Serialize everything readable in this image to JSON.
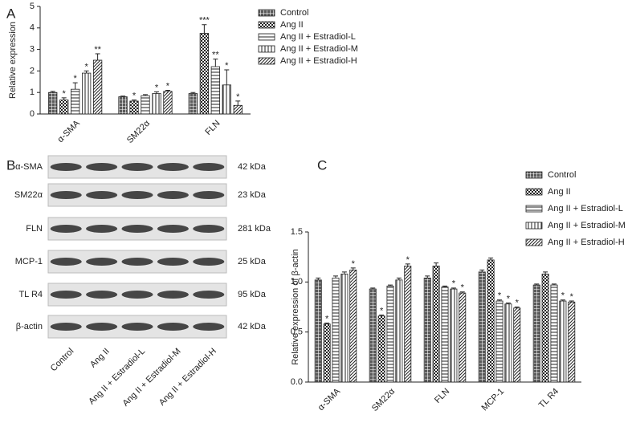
{
  "chart_data": [
    {
      "type": "bar",
      "panel": "A",
      "y_label": "Relative expression",
      "categories": [
        "α-SMA",
        "SM22α",
        "FLN"
      ],
      "ylim": [
        0,
        5
      ],
      "yticks": [
        0,
        1,
        2,
        3,
        4,
        5
      ],
      "series": [
        {
          "name": "Control",
          "color": "#222222",
          "pattern": "grid",
          "values": [
            1.0,
            0.8,
            0.95
          ],
          "errors": [
            0.05,
            0.03,
            0.05
          ],
          "labels": [
            null,
            null,
            null
          ]
        },
        {
          "name": "Ang II",
          "color": "#222222",
          "pattern": "checker",
          "values": [
            0.65,
            0.6,
            3.75
          ],
          "errors": [
            0.1,
            0.05,
            0.4
          ],
          "labels": [
            "*",
            "*",
            "***"
          ]
        },
        {
          "name": "Ang II + Estradiol-L",
          "color": "#222222",
          "pattern": "hlines",
          "values": [
            1.15,
            0.85,
            2.2
          ],
          "errors": [
            0.3,
            0.05,
            0.35
          ],
          "labels": [
            "*",
            null,
            "**"
          ]
        },
        {
          "name": "Ang II + Estradiol-M",
          "color": "#222222",
          "pattern": "vlines",
          "values": [
            1.9,
            0.95,
            1.35
          ],
          "errors": [
            0.1,
            0.08,
            0.7
          ],
          "labels": [
            "*",
            "*",
            "*"
          ]
        },
        {
          "name": "Ang II + Estradiol-H",
          "color": "#222222",
          "pattern": "diag",
          "values": [
            2.5,
            1.05,
            0.4
          ],
          "errors": [
            0.3,
            0.05,
            0.2
          ],
          "labels": [
            "**",
            "*",
            "*"
          ]
        }
      ]
    },
    {
      "type": "bar",
      "panel": "C",
      "y_label": "Relative expression of β-actin",
      "categories": [
        "α-SMA",
        "SM22α",
        "FLN",
        "MCP-1",
        "TL R4"
      ],
      "ylim": [
        0,
        1.5
      ],
      "yticks": [
        {
          "value": 0,
          "label": "0.0"
        },
        {
          "value": 0.5,
          "label": "0.5"
        },
        {
          "value": 1,
          "label": "1.0"
        },
        {
          "value": 1.5,
          "label": "1.5"
        }
      ],
      "series": [
        {
          "name": "Control",
          "color": "#222222",
          "pattern": "grid",
          "values": [
            1.02,
            0.93,
            1.04,
            1.1,
            0.97
          ],
          "errors": [
            0.02,
            0.01,
            0.02,
            0.02,
            0.01
          ],
          "labels": [
            null,
            null,
            null,
            null,
            null
          ]
        },
        {
          "name": "Ang II",
          "color": "#222222",
          "pattern": "checker",
          "values": [
            0.58,
            0.66,
            1.16,
            1.22,
            1.08
          ],
          "errors": [
            0.01,
            0.01,
            0.03,
            0.02,
            0.02
          ],
          "labels": [
            "*",
            "*",
            null,
            null,
            null
          ]
        },
        {
          "name": "Ang II + Estradiol-L",
          "color": "#222222",
          "pattern": "hlines",
          "values": [
            1.04,
            0.96,
            0.95,
            0.81,
            0.97
          ],
          "errors": [
            0.02,
            0.01,
            0.01,
            0.01,
            0.01
          ],
          "labels": [
            null,
            null,
            null,
            "*",
            null
          ]
        },
        {
          "name": "Ang II + Estradiol-M",
          "color": "#222222",
          "pattern": "vlines",
          "values": [
            1.08,
            1.02,
            0.93,
            0.78,
            0.81
          ],
          "errors": [
            0.02,
            0.02,
            0.01,
            0.01,
            0.01
          ],
          "labels": [
            null,
            null,
            "*",
            "*",
            "*"
          ]
        },
        {
          "name": "Ang II + Estradiol-H",
          "color": "#222222",
          "pattern": "diag",
          "values": [
            1.12,
            1.16,
            0.89,
            0.74,
            0.8
          ],
          "errors": [
            0.02,
            0.02,
            0.01,
            0.01,
            0.01
          ],
          "labels": [
            "*",
            "*",
            "*",
            "*",
            "*"
          ]
        }
      ]
    }
  ],
  "blot": {
    "panel": "B",
    "proteins": [
      {
        "name": "α-SMA",
        "size": "42 kDa"
      },
      {
        "name": "SM22α",
        "size": "23 kDa"
      },
      {
        "name": "FLN",
        "size": "281 kDa"
      },
      {
        "name": "MCP-1",
        "size": "25 kDa"
      },
      {
        "name": "TL R4",
        "size": "95 kDa"
      },
      {
        "name": "β-actin",
        "size": "42 kDa"
      }
    ],
    "lanes": [
      "Control",
      "Ang II",
      "Ang II + Estradiol-L",
      "Ang II + Estradiol-M",
      "Ang II + Estradiol-H"
    ]
  }
}
